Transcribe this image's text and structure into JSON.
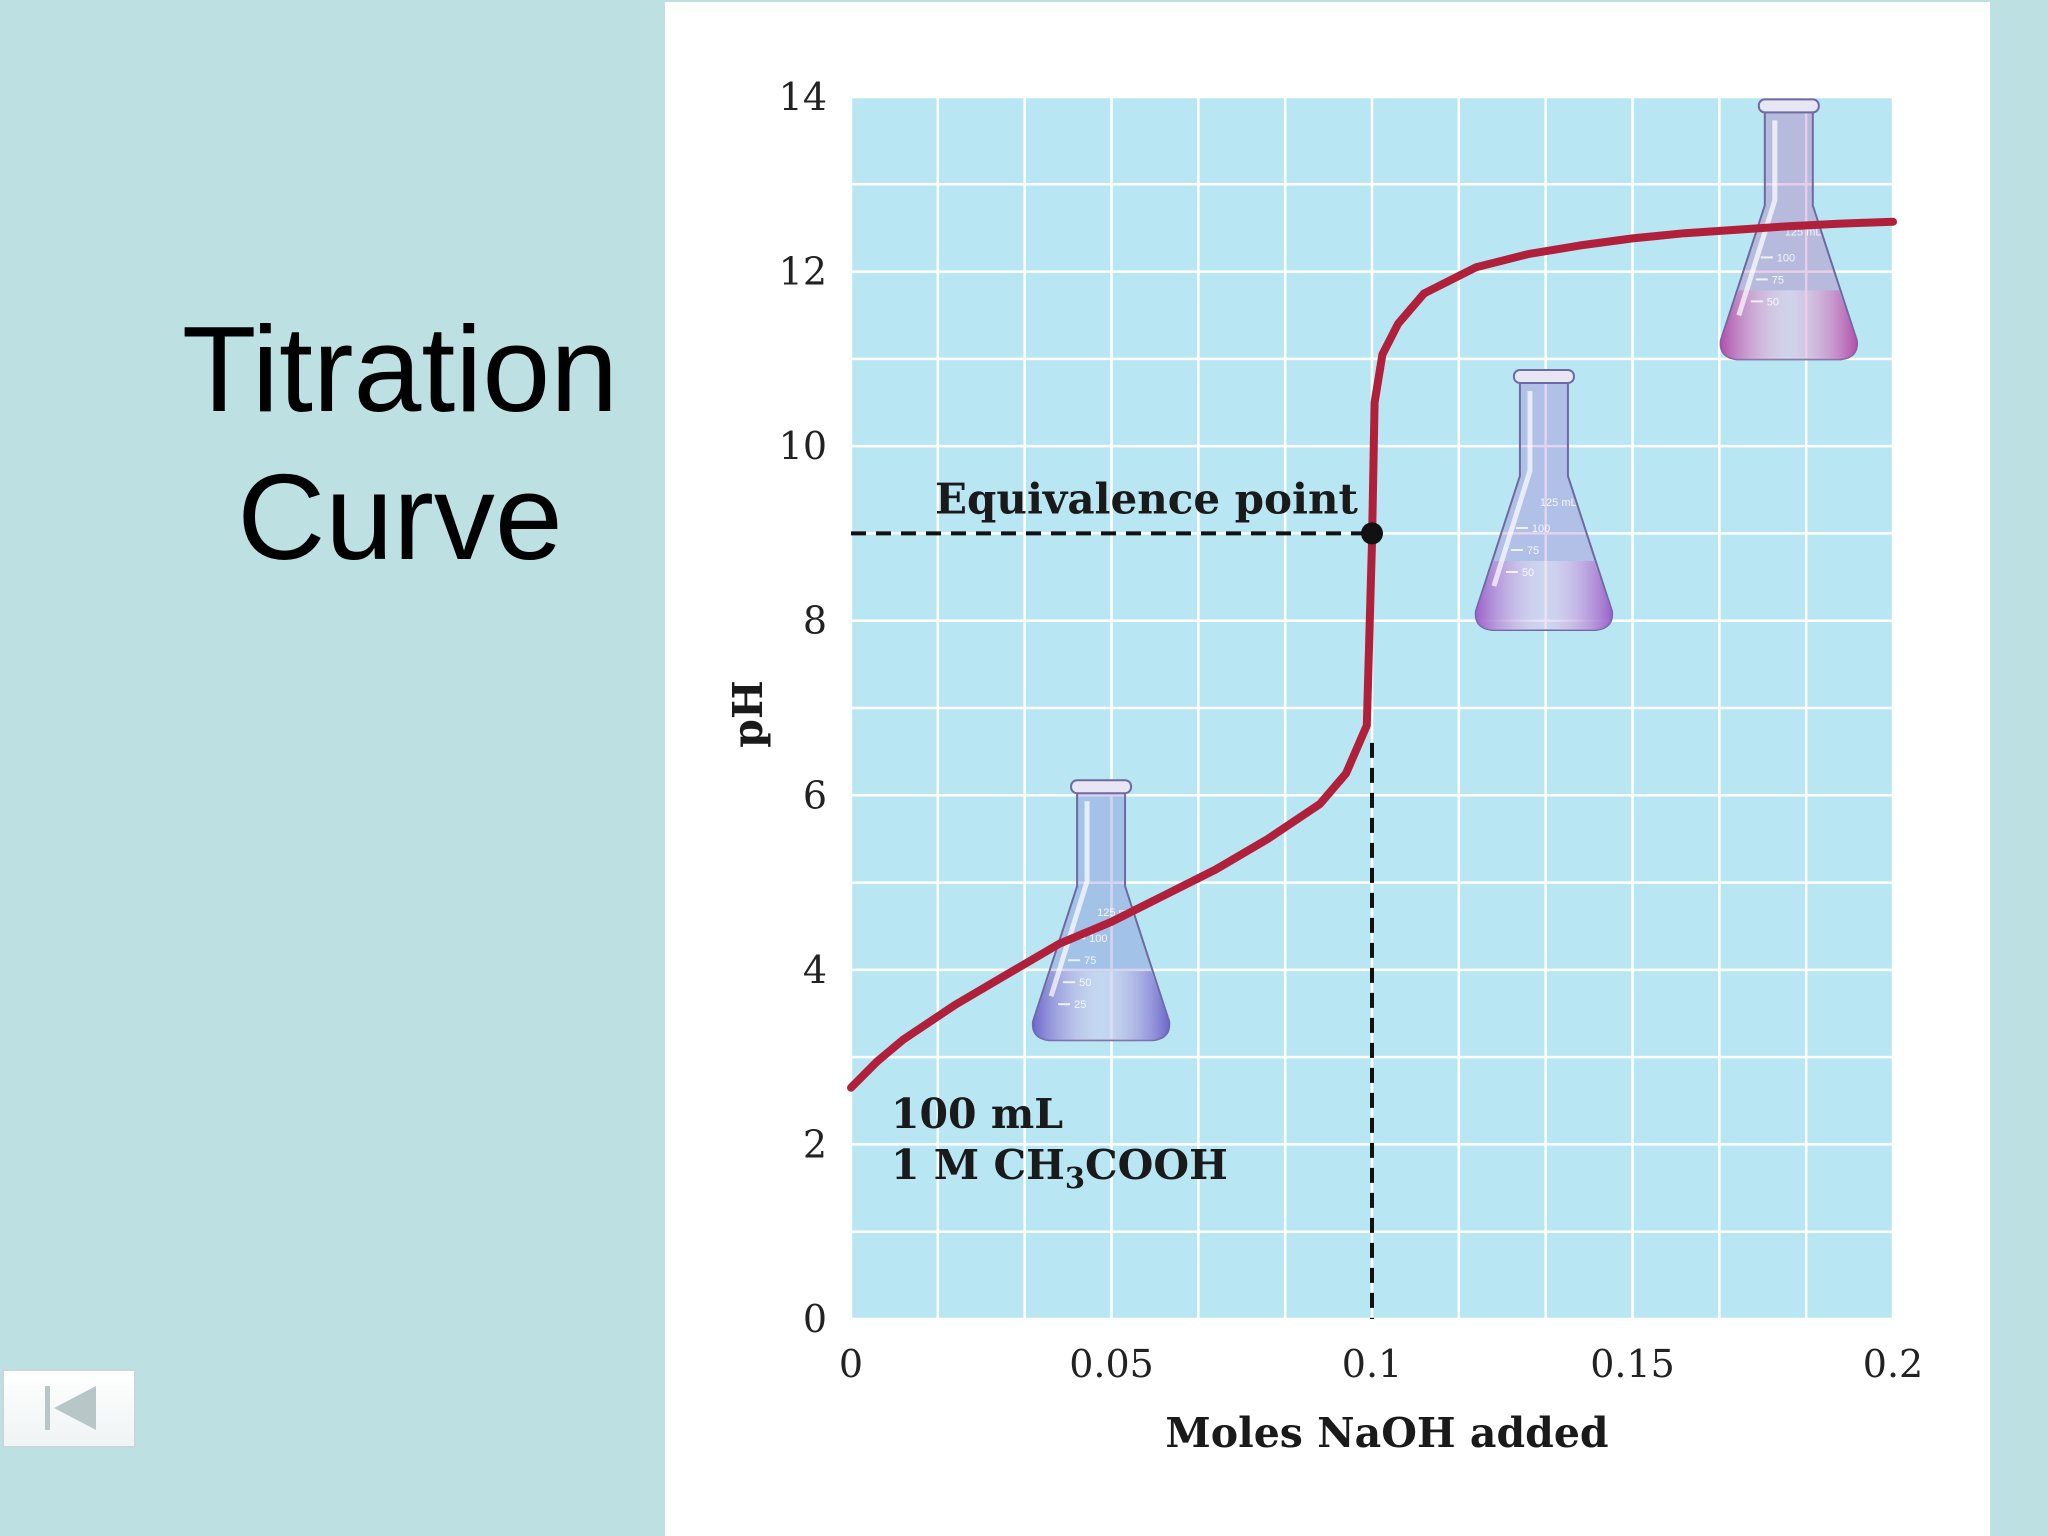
{
  "slide": {
    "title_line1": "Titration",
    "title_line2": "Curve"
  },
  "nav": {
    "back_icon": "skip-to-first-icon"
  },
  "chart_data": {
    "type": "line",
    "xlabel": "Moles NaOH added",
    "ylabel": "pH",
    "xlim": [
      0,
      0.2
    ],
    "ylim": [
      0,
      14
    ],
    "x_ticks": [
      0,
      0.05,
      0.1,
      0.15,
      0.2
    ],
    "x_tick_labels": [
      "0",
      "0.05",
      "0.1",
      "0.15",
      "0.2"
    ],
    "y_ticks": [
      0,
      2,
      4,
      6,
      8,
      10,
      12,
      14
    ],
    "y_tick_labels": [
      "0",
      "2",
      "4",
      "6",
      "8",
      "10",
      "12",
      "14"
    ],
    "grid": true,
    "series": [
      {
        "color": "#b0203a",
        "points": [
          [
            0,
            2.65
          ],
          [
            0.005,
            2.95
          ],
          [
            0.01,
            3.2
          ],
          [
            0.02,
            3.6
          ],
          [
            0.03,
            3.95
          ],
          [
            0.04,
            4.3
          ],
          [
            0.05,
            4.55
          ],
          [
            0.06,
            4.85
          ],
          [
            0.07,
            5.15
          ],
          [
            0.08,
            5.5
          ],
          [
            0.09,
            5.9
          ],
          [
            0.095,
            6.25
          ],
          [
            0.099,
            6.8
          ],
          [
            0.1,
            8.9
          ],
          [
            0.1005,
            10.5
          ],
          [
            0.102,
            11.05
          ],
          [
            0.105,
            11.4
          ],
          [
            0.11,
            11.75
          ],
          [
            0.12,
            12.05
          ],
          [
            0.13,
            12.2
          ],
          [
            0.14,
            12.3
          ],
          [
            0.15,
            12.38
          ],
          [
            0.16,
            12.44
          ],
          [
            0.17,
            12.48
          ],
          [
            0.18,
            12.52
          ],
          [
            0.19,
            12.55
          ],
          [
            0.2,
            12.57
          ]
        ]
      }
    ],
    "equivalence_point": {
      "x": 0.1,
      "y": 9.0,
      "label": "Equivalence point"
    },
    "annotation": {
      "line1": "100 mL",
      "line2_prefix": "1 M CH",
      "line2_sub": "3",
      "line2_suffix": "COOH"
    },
    "flasks": [
      {
        "x": 0.048,
        "y": 4.5,
        "color": "#6a63c8",
        "label_volume": "125 mL",
        "graduations": [
          "100",
          "75",
          "50",
          "25"
        ]
      },
      {
        "x": 0.133,
        "y": 9.2,
        "color": "#9a5cc8",
        "label_volume": "125 mL",
        "graduations": [
          "100",
          "75",
          "50"
        ]
      },
      {
        "x": 0.18,
        "y": 12.3,
        "color": "#b04aa8",
        "label_volume": "125 mL",
        "graduations": [
          "100",
          "75",
          "50"
        ]
      }
    ],
    "plot_background": "#b9e6f3",
    "grid_color": "#ffffff"
  }
}
